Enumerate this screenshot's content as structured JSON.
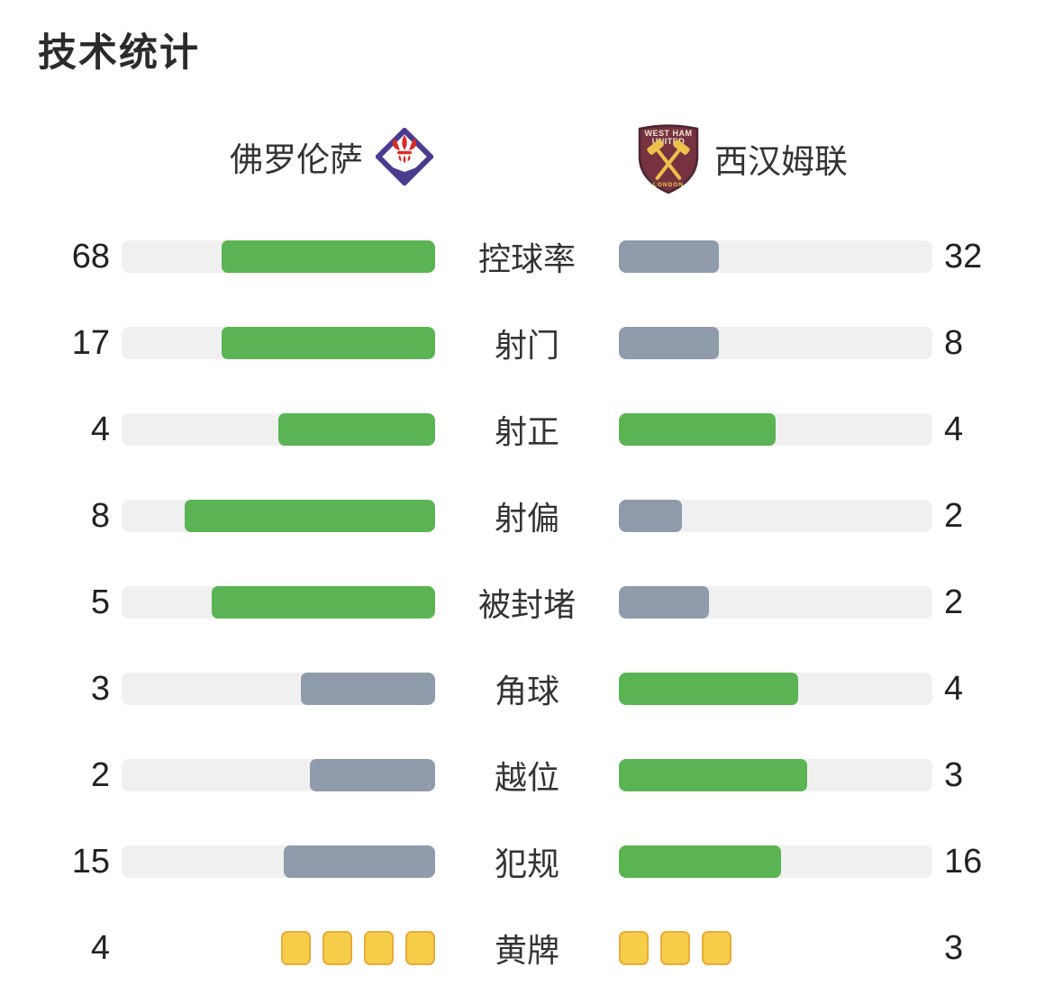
{
  "title": "技术统计",
  "teams": {
    "home": {
      "name": "佛罗伦萨"
    },
    "away": {
      "name": "西汉姆联",
      "crest_text_top": "WEST HAM",
      "crest_text_mid": "UNITED",
      "crest_text_bottom": "LONDON"
    }
  },
  "colors": {
    "win": "#5bb453",
    "lose": "#8f9aab",
    "track": "#f0f0f1",
    "card_fill": "#f6ce4a",
    "card_border": "#e9ab3a",
    "text": "#2b2b2b",
    "fiorentina_purple": "#4a3b8f",
    "fiorentina_red": "#dc2a26",
    "westham_claret": "#76323f",
    "westham_gold": "#ecc14c"
  },
  "rows": [
    {
      "label": "控球率",
      "type": "bar",
      "home": {
        "value": 68,
        "pct": 68,
        "result": "win"
      },
      "away": {
        "value": 32,
        "pct": 32,
        "result": "lose"
      }
    },
    {
      "label": "射门",
      "type": "bar",
      "home": {
        "value": 17,
        "pct": 68,
        "result": "win"
      },
      "away": {
        "value": 8,
        "pct": 32,
        "result": "lose"
      }
    },
    {
      "label": "射正",
      "type": "bar",
      "home": {
        "value": 4,
        "pct": 50,
        "result": "win"
      },
      "away": {
        "value": 4,
        "pct": 50,
        "result": "win"
      }
    },
    {
      "label": "射偏",
      "type": "bar",
      "home": {
        "value": 8,
        "pct": 80,
        "result": "win"
      },
      "away": {
        "value": 2,
        "pct": 20,
        "result": "lose"
      }
    },
    {
      "label": "被封堵",
      "type": "bar",
      "home": {
        "value": 5,
        "pct": 71.4,
        "result": "win"
      },
      "away": {
        "value": 2,
        "pct": 28.6,
        "result": "lose"
      }
    },
    {
      "label": "角球",
      "type": "bar",
      "home": {
        "value": 3,
        "pct": 42.9,
        "result": "lose"
      },
      "away": {
        "value": 4,
        "pct": 57.1,
        "result": "win"
      }
    },
    {
      "label": "越位",
      "type": "bar",
      "home": {
        "value": 2,
        "pct": 40,
        "result": "lose"
      },
      "away": {
        "value": 3,
        "pct": 60,
        "result": "win"
      }
    },
    {
      "label": "犯规",
      "type": "bar",
      "home": {
        "value": 15,
        "pct": 48.4,
        "result": "lose"
      },
      "away": {
        "value": 16,
        "pct": 51.6,
        "result": "win"
      }
    },
    {
      "label": "黄牌",
      "type": "cards",
      "home": {
        "value": 4
      },
      "away": {
        "value": 3
      }
    }
  ],
  "chart_data": {
    "type": "bar",
    "title": "技术统计",
    "categories": [
      "控球率",
      "射门",
      "射正",
      "射偏",
      "被封堵",
      "角球",
      "越位",
      "犯规",
      "黄牌"
    ],
    "series": [
      {
        "name": "佛罗伦萨",
        "values": [
          68,
          17,
          4,
          8,
          5,
          3,
          2,
          15,
          4
        ]
      },
      {
        "name": "西汉姆联",
        "values": [
          32,
          8,
          4,
          2,
          2,
          4,
          3,
          16,
          3
        ]
      }
    ],
    "orientation": "horizontal mirrored paired bars, category label centered between sides",
    "value_labels": "numeric values at outer left/right edges",
    "bar_scale": "fill length = value / (home value + away value) share of full track",
    "style_rules": "higher value green #5bb453, lower value gray #8f9aab, tie both green; 黄牌 row rendered as yellow card icons instead of bars",
    "grid": false,
    "legend_position": "team names with crests above columns"
  }
}
